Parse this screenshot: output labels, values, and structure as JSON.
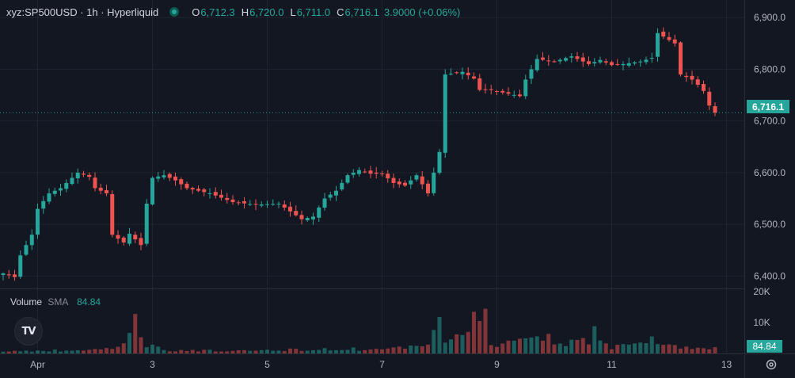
{
  "header": {
    "symbol": "xyz:SP500USD · 1h · Hyperliquid",
    "open_label": "O",
    "open": "6,712.3",
    "high_label": "H",
    "high": "6,720.0",
    "low_label": "L",
    "low": "6,711.0",
    "close_label": "C",
    "close": "6,716.1",
    "change": "3.9000 (+0.06%)"
  },
  "volume_legend": {
    "title": "Volume",
    "sma_label": "SMA",
    "sma_value": "84.84"
  },
  "logo_text": "TV",
  "last_price_tag": "6,716.1",
  "volume_tag": "84.84",
  "icons": {
    "logo": "tradingview-logo-icon",
    "settings": "gear-icon",
    "status": "market-status-icon"
  },
  "colors": {
    "up": "#26a69a",
    "down": "#ef5350",
    "background": "#131722",
    "grid": "#1f2430",
    "text": "#b2b5be"
  },
  "chart_data": {
    "type": "candlestick",
    "timeframe": "1h",
    "y_axis": {
      "ticks": [
        "6,900.0",
        "6,800.0",
        "6,700.0",
        "6,600.0",
        "6,500.0",
        "6,400.0"
      ],
      "tick_values": [
        6900,
        6800,
        6700,
        6600,
        6500,
        6400
      ],
      "ylim": [
        6376,
        6934
      ]
    },
    "x_axis": {
      "ticks": [
        "Apr",
        "3",
        "5",
        "7",
        "9",
        "11",
        "13"
      ],
      "tick_index": [
        6,
        26,
        46,
        66,
        86,
        106,
        126
      ]
    },
    "volume_axis": {
      "ticks": [
        "20K",
        "10K"
      ],
      "tick_values": [
        20000,
        10000
      ],
      "ylim": [
        0,
        20000
      ]
    },
    "last_price": 6716.1,
    "close_path": [
      [
        0,
        6405
      ],
      [
        2,
        6398
      ],
      [
        3,
        6440
      ],
      [
        5,
        6480
      ],
      [
        6,
        6530
      ],
      [
        8,
        6560
      ],
      [
        10,
        6570
      ],
      [
        12,
        6590
      ],
      [
        13,
        6600
      ],
      [
        15,
        6592
      ],
      [
        16,
        6570
      ],
      [
        18,
        6560
      ],
      [
        19,
        6480
      ],
      [
        21,
        6465
      ],
      [
        22,
        6482
      ],
      [
        24,
        6460
      ],
      [
        25,
        6540
      ],
      [
        26,
        6590
      ],
      [
        28,
        6595
      ],
      [
        30,
        6585
      ],
      [
        32,
        6570
      ],
      [
        36,
        6560
      ],
      [
        40,
        6543
      ],
      [
        44,
        6538
      ],
      [
        48,
        6540
      ],
      [
        52,
        6510
      ],
      [
        54,
        6515
      ],
      [
        56,
        6550
      ],
      [
        58,
        6565
      ],
      [
        60,
        6595
      ],
      [
        62,
        6605
      ],
      [
        64,
        6598
      ],
      [
        66,
        6598
      ],
      [
        68,
        6580
      ],
      [
        70,
        6575
      ],
      [
        72,
        6595
      ],
      [
        74,
        6560
      ],
      [
        76,
        6640
      ],
      [
        76.5,
        6750
      ],
      [
        77,
        6790
      ],
      [
        80,
        6795
      ],
      [
        82,
        6782
      ],
      [
        83,
        6760
      ],
      [
        85,
        6760
      ],
      [
        87,
        6755
      ],
      [
        90,
        6748
      ],
      [
        91,
        6780
      ],
      [
        93,
        6820
      ],
      [
        96,
        6815
      ],
      [
        99,
        6825
      ],
      [
        102,
        6810
      ],
      [
        104,
        6818
      ],
      [
        106,
        6808
      ],
      [
        108,
        6810
      ],
      [
        111,
        6815
      ],
      [
        113,
        6822
      ],
      [
        114,
        6870
      ],
      [
        117,
        6850
      ],
      [
        118,
        6790
      ],
      [
        120,
        6780
      ],
      [
        121,
        6770
      ],
      [
        122,
        6758
      ],
      [
        123,
        6730
      ],
      [
        124,
        6716.1
      ]
    ],
    "volume_path": [
      [
        0,
        700
      ],
      [
        8,
        900
      ],
      [
        16,
        1100
      ],
      [
        19,
        1700
      ],
      [
        22,
        6000
      ],
      [
        23,
        18000
      ],
      [
        24,
        4000
      ],
      [
        28,
        1200
      ],
      [
        40,
        700
      ],
      [
        56,
        1500
      ],
      [
        66,
        1300
      ],
      [
        74,
        2200
      ],
      [
        76,
        11000
      ],
      [
        77,
        4000
      ],
      [
        84,
        13500
      ],
      [
        85,
        2500
      ],
      [
        92,
        4000
      ],
      [
        93,
        7900
      ],
      [
        96,
        3000
      ],
      [
        102,
        4500
      ],
      [
        103,
        8500
      ],
      [
        106,
        2200
      ],
      [
        111,
        2800
      ],
      [
        113,
        5500
      ],
      [
        114,
        2500
      ],
      [
        124,
        1500
      ]
    ]
  }
}
